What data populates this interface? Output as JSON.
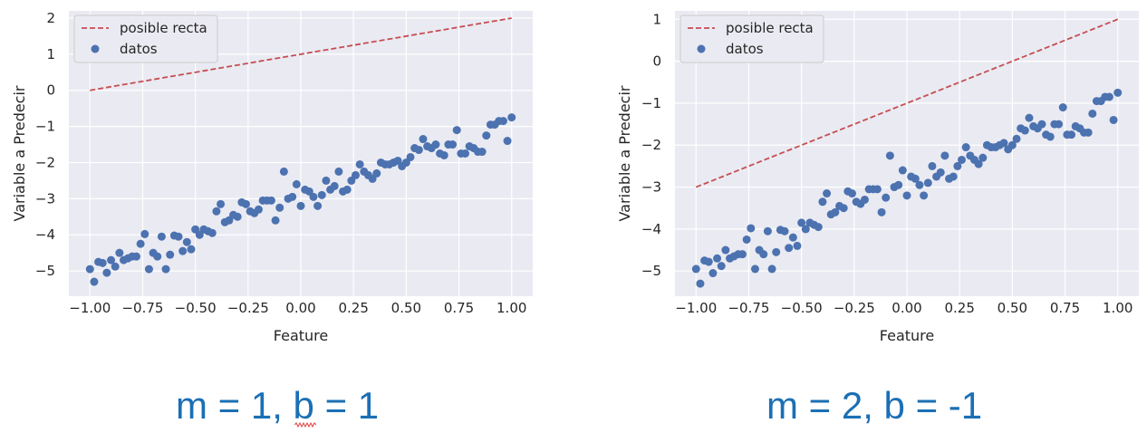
{
  "captions": [
    "m = 1, b = 1",
    "m = 2, b = -1"
  ],
  "chart_data": [
    {
      "type": "scatter",
      "xlabel": "Feature",
      "ylabel": "Variable a Predecir",
      "xlim": [
        -1.1,
        1.1
      ],
      "ylim": [
        -5.7,
        2.2
      ],
      "xticks": [
        "−1.00",
        "−0.75",
        "−0.50",
        "−0.25",
        "0.00",
        "0.25",
        "0.50",
        "0.75",
        "1.00"
      ],
      "yticks": [
        "−5",
        "−4",
        "−3",
        "−2",
        "−1",
        "0",
        "1",
        "2"
      ],
      "legend": {
        "position": "top-left",
        "entries": [
          "posible recta",
          "datos"
        ]
      },
      "grid": true,
      "series": [
        {
          "name": "posible recta",
          "style": "dashed-line",
          "color": "#c44e52",
          "x": [
            -1.0,
            1.0
          ],
          "y": [
            0.0,
            2.0
          ]
        },
        {
          "name": "datos",
          "style": "points",
          "color": "#4c72b0",
          "x": [
            -1.0,
            -0.98,
            -0.96,
            -0.94,
            -0.92,
            -0.9,
            -0.88,
            -0.86,
            -0.84,
            -0.82,
            -0.8,
            -0.78,
            -0.76,
            -0.74,
            -0.72,
            -0.7,
            -0.68,
            -0.66,
            -0.64,
            -0.62,
            -0.6,
            -0.58,
            -0.56,
            -0.54,
            -0.52,
            -0.5,
            -0.48,
            -0.46,
            -0.44,
            -0.42,
            -0.4,
            -0.38,
            -0.36,
            -0.34,
            -0.32,
            -0.3,
            -0.28,
            -0.26,
            -0.24,
            -0.22,
            -0.2,
            -0.18,
            -0.16,
            -0.14,
            -0.12,
            -0.1,
            -0.08,
            -0.06,
            -0.04,
            -0.02,
            0.0,
            0.02,
            0.04,
            0.06,
            0.08,
            0.1,
            0.12,
            0.14,
            0.16,
            0.18,
            0.2,
            0.22,
            0.24,
            0.26,
            0.28,
            0.3,
            0.32,
            0.34,
            0.36,
            0.38,
            0.4,
            0.42,
            0.44,
            0.46,
            0.48,
            0.5,
            0.52,
            0.54,
            0.56,
            0.58,
            0.6,
            0.62,
            0.64,
            0.66,
            0.68,
            0.7,
            0.72,
            0.74,
            0.76,
            0.78,
            0.8,
            0.82,
            0.84,
            0.86,
            0.88,
            0.9,
            0.92,
            0.94,
            0.96,
            0.98,
            1.0
          ],
          "y": [
            -4.95,
            -5.3,
            -4.75,
            -4.78,
            -5.05,
            -4.7,
            -4.88,
            -4.5,
            -4.7,
            -4.65,
            -4.6,
            -4.6,
            -4.25,
            -3.98,
            -4.95,
            -4.5,
            -4.6,
            -4.05,
            -4.95,
            -4.55,
            -4.02,
            -4.05,
            -4.45,
            -4.2,
            -4.4,
            -3.85,
            -4.0,
            -3.85,
            -3.9,
            -3.95,
            -3.35,
            -3.15,
            -3.65,
            -3.6,
            -3.45,
            -3.5,
            -3.1,
            -3.15,
            -3.35,
            -3.4,
            -3.3,
            -3.05,
            -3.05,
            -3.05,
            -3.6,
            -3.25,
            -2.25,
            -3.0,
            -2.95,
            -2.6,
            -3.2,
            -2.75,
            -2.8,
            -2.95,
            -3.2,
            -2.9,
            -2.5,
            -2.75,
            -2.65,
            -2.25,
            -2.8,
            -2.75,
            -2.5,
            -2.35,
            -2.05,
            -2.25,
            -2.35,
            -2.45,
            -2.3,
            -2.0,
            -2.05,
            -2.05,
            -2.0,
            -1.95,
            -2.1,
            -2.0,
            -1.85,
            -1.6,
            -1.65,
            -1.35,
            -1.55,
            -1.6,
            -1.5,
            -1.75,
            -1.8,
            -1.5,
            -1.5,
            -1.1,
            -1.75,
            -1.75,
            -1.55,
            -1.6,
            -1.7,
            -1.7,
            -1.25,
            -0.95,
            -0.95,
            -0.85,
            -0.85,
            -1.4,
            -0.75
          ]
        }
      ]
    },
    {
      "type": "scatter",
      "xlabel": "Feature",
      "ylabel": "Variable a Predecir",
      "xlim": [
        -1.1,
        1.1
      ],
      "ylim": [
        -5.6,
        1.2
      ],
      "xticks": [
        "−1.00",
        "−0.75",
        "−0.50",
        "−0.25",
        "0.00",
        "0.25",
        "0.50",
        "0.75",
        "1.00"
      ],
      "yticks": [
        "−5",
        "−4",
        "−3",
        "−2",
        "−1",
        "0",
        "1"
      ],
      "legend": {
        "position": "top-left",
        "entries": [
          "posible recta",
          "datos"
        ]
      },
      "grid": true,
      "series": [
        {
          "name": "posible recta",
          "style": "dashed-line",
          "color": "#c44e52",
          "x": [
            -1.0,
            1.0
          ],
          "y": [
            -3.0,
            1.0
          ]
        },
        {
          "name": "datos",
          "style": "points",
          "color": "#4c72b0",
          "x": [
            -1.0,
            -0.98,
            -0.96,
            -0.94,
            -0.92,
            -0.9,
            -0.88,
            -0.86,
            -0.84,
            -0.82,
            -0.8,
            -0.78,
            -0.76,
            -0.74,
            -0.72,
            -0.7,
            -0.68,
            -0.66,
            -0.64,
            -0.62,
            -0.6,
            -0.58,
            -0.56,
            -0.54,
            -0.52,
            -0.5,
            -0.48,
            -0.46,
            -0.44,
            -0.42,
            -0.4,
            -0.38,
            -0.36,
            -0.34,
            -0.32,
            -0.3,
            -0.28,
            -0.26,
            -0.24,
            -0.22,
            -0.2,
            -0.18,
            -0.16,
            -0.14,
            -0.12,
            -0.1,
            -0.08,
            -0.06,
            -0.04,
            -0.02,
            0.0,
            0.02,
            0.04,
            0.06,
            0.08,
            0.1,
            0.12,
            0.14,
            0.16,
            0.18,
            0.2,
            0.22,
            0.24,
            0.26,
            0.28,
            0.3,
            0.32,
            0.34,
            0.36,
            0.38,
            0.4,
            0.42,
            0.44,
            0.46,
            0.48,
            0.5,
            0.52,
            0.54,
            0.56,
            0.58,
            0.6,
            0.62,
            0.64,
            0.66,
            0.68,
            0.7,
            0.72,
            0.74,
            0.76,
            0.78,
            0.8,
            0.82,
            0.84,
            0.86,
            0.88,
            0.9,
            0.92,
            0.94,
            0.96,
            0.98,
            1.0
          ],
          "y": [
            -4.95,
            -5.3,
            -4.75,
            -4.78,
            -5.05,
            -4.7,
            -4.88,
            -4.5,
            -4.7,
            -4.65,
            -4.6,
            -4.6,
            -4.25,
            -3.98,
            -4.95,
            -4.5,
            -4.6,
            -4.05,
            -4.95,
            -4.55,
            -4.02,
            -4.05,
            -4.45,
            -4.2,
            -4.4,
            -3.85,
            -4.0,
            -3.85,
            -3.9,
            -3.95,
            -3.35,
            -3.15,
            -3.65,
            -3.6,
            -3.45,
            -3.5,
            -3.1,
            -3.15,
            -3.35,
            -3.4,
            -3.3,
            -3.05,
            -3.05,
            -3.05,
            -3.6,
            -3.25,
            -2.25,
            -3.0,
            -2.95,
            -2.6,
            -3.2,
            -2.75,
            -2.8,
            -2.95,
            -3.2,
            -2.9,
            -2.5,
            -2.75,
            -2.65,
            -2.25,
            -2.8,
            -2.75,
            -2.5,
            -2.35,
            -2.05,
            -2.25,
            -2.35,
            -2.45,
            -2.3,
            -2.0,
            -2.05,
            -2.05,
            -2.0,
            -1.95,
            -2.1,
            -2.0,
            -1.85,
            -1.6,
            -1.65,
            -1.35,
            -1.55,
            -1.6,
            -1.5,
            -1.75,
            -1.8,
            -1.5,
            -1.5,
            -1.1,
            -1.75,
            -1.75,
            -1.55,
            -1.6,
            -1.7,
            -1.7,
            -1.25,
            -0.95,
            -0.95,
            -0.85,
            -0.85,
            -1.4,
            -0.75
          ]
        }
      ]
    }
  ]
}
